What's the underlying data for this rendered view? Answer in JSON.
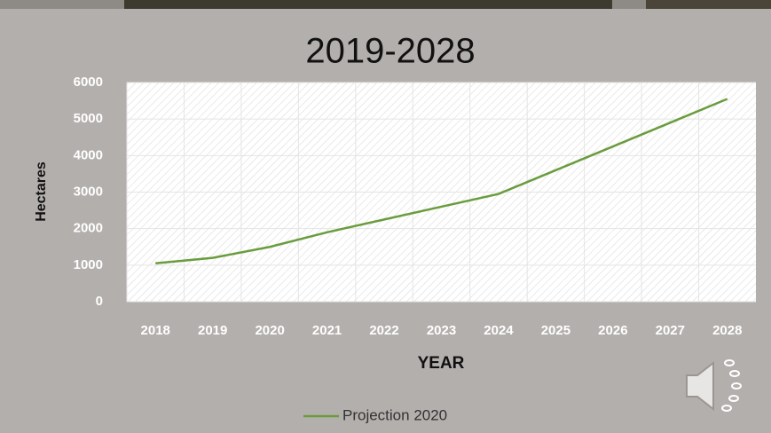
{
  "chart_data": {
    "type": "line",
    "title": "2019-2028",
    "x_label": "YEAR",
    "y_label": "Hectares",
    "categories": [
      "2018",
      "2019",
      "2020",
      "2021",
      "2022",
      "2023",
      "2024",
      "2025",
      "2026",
      "2027",
      "2028"
    ],
    "series": [
      {
        "name": "Projection 2020",
        "color": "#6a9c3e",
        "values": [
          1050,
          1200,
          1500,
          1900,
          2250,
          2600,
          2950,
          3600,
          4250,
          4900,
          5550
        ]
      }
    ],
    "ylim": [
      0,
      6000
    ],
    "yticks": [
      0,
      1000,
      2000,
      3000,
      4000,
      5000,
      6000
    ],
    "grid": true,
    "legend": "bottom"
  }
}
